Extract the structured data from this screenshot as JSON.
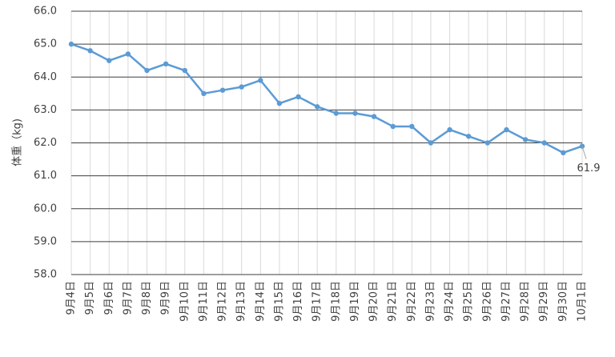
{
  "chart_data": {
    "type": "line",
    "y_label": "体重（kg)",
    "categories": [
      "9月4日",
      "9月5日",
      "9月6日",
      "9月7日",
      "9月8日",
      "9月9日",
      "9月10日",
      "9月11日",
      "9月12日",
      "9月13日",
      "9月14日",
      "9月15日",
      "9月16日",
      "9月17日",
      "9月18日",
      "9月19日",
      "9月20日",
      "9月21日",
      "9月22日",
      "9月23日",
      "9月24日",
      "9月25日",
      "9月26日",
      "9月27日",
      "9月28日",
      "9月29日",
      "9月30日",
      "10月1日"
    ],
    "values": [
      65.0,
      64.8,
      64.5,
      64.7,
      64.2,
      64.4,
      64.2,
      63.5,
      63.6,
      63.7,
      63.9,
      63.2,
      63.4,
      63.1,
      62.9,
      62.9,
      62.8,
      62.5,
      62.5,
      62.0,
      62.4,
      62.2,
      62.0,
      62.4,
      62.1,
      62.0,
      61.7,
      61.9
    ],
    "color": "#5b9bd5",
    "ylim": [
      58,
      66
    ],
    "yticks": [
      {
        "value": 58,
        "label": "58.0"
      },
      {
        "value": 59,
        "label": "59.0"
      },
      {
        "value": 60,
        "label": "60.0"
      },
      {
        "value": 61,
        "label": "61.0"
      },
      {
        "value": 62,
        "label": "62.0"
      },
      {
        "value": 63,
        "label": "63.0"
      },
      {
        "value": 64,
        "label": "64.0"
      },
      {
        "value": 65,
        "label": "65.0"
      },
      {
        "value": 66,
        "label": "66.0"
      }
    ],
    "grid": true,
    "labeled_point": 27
  }
}
